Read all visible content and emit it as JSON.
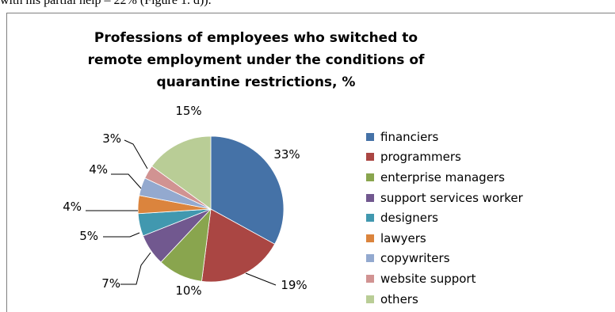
{
  "page": {
    "intro_text": "with his partial help – 22% (Figure 1. d))."
  },
  "chart_data": {
    "type": "pie",
    "title": "Professions of employees who switched to remote employment under the conditions of quarantine restrictions, %",
    "legend_position": "right",
    "categories": [
      "financiers",
      "programmers",
      "enterprise managers",
      "support services worker",
      "designers",
      "lawyers",
      "copywriters",
      "website support",
      "others"
    ],
    "values": [
      33,
      19,
      10,
      7,
      5,
      4,
      4,
      3,
      15
    ],
    "data_labels": [
      "33%",
      "19%",
      "10%",
      "7%",
      "5%",
      "4%",
      "4%",
      "3%",
      "15%"
    ],
    "colors": [
      "#4572a7",
      "#aa4643",
      "#89a54e",
      "#71588f",
      "#4198af",
      "#db843d",
      "#93a9cf",
      "#d19392",
      "#b9cd96"
    ]
  }
}
